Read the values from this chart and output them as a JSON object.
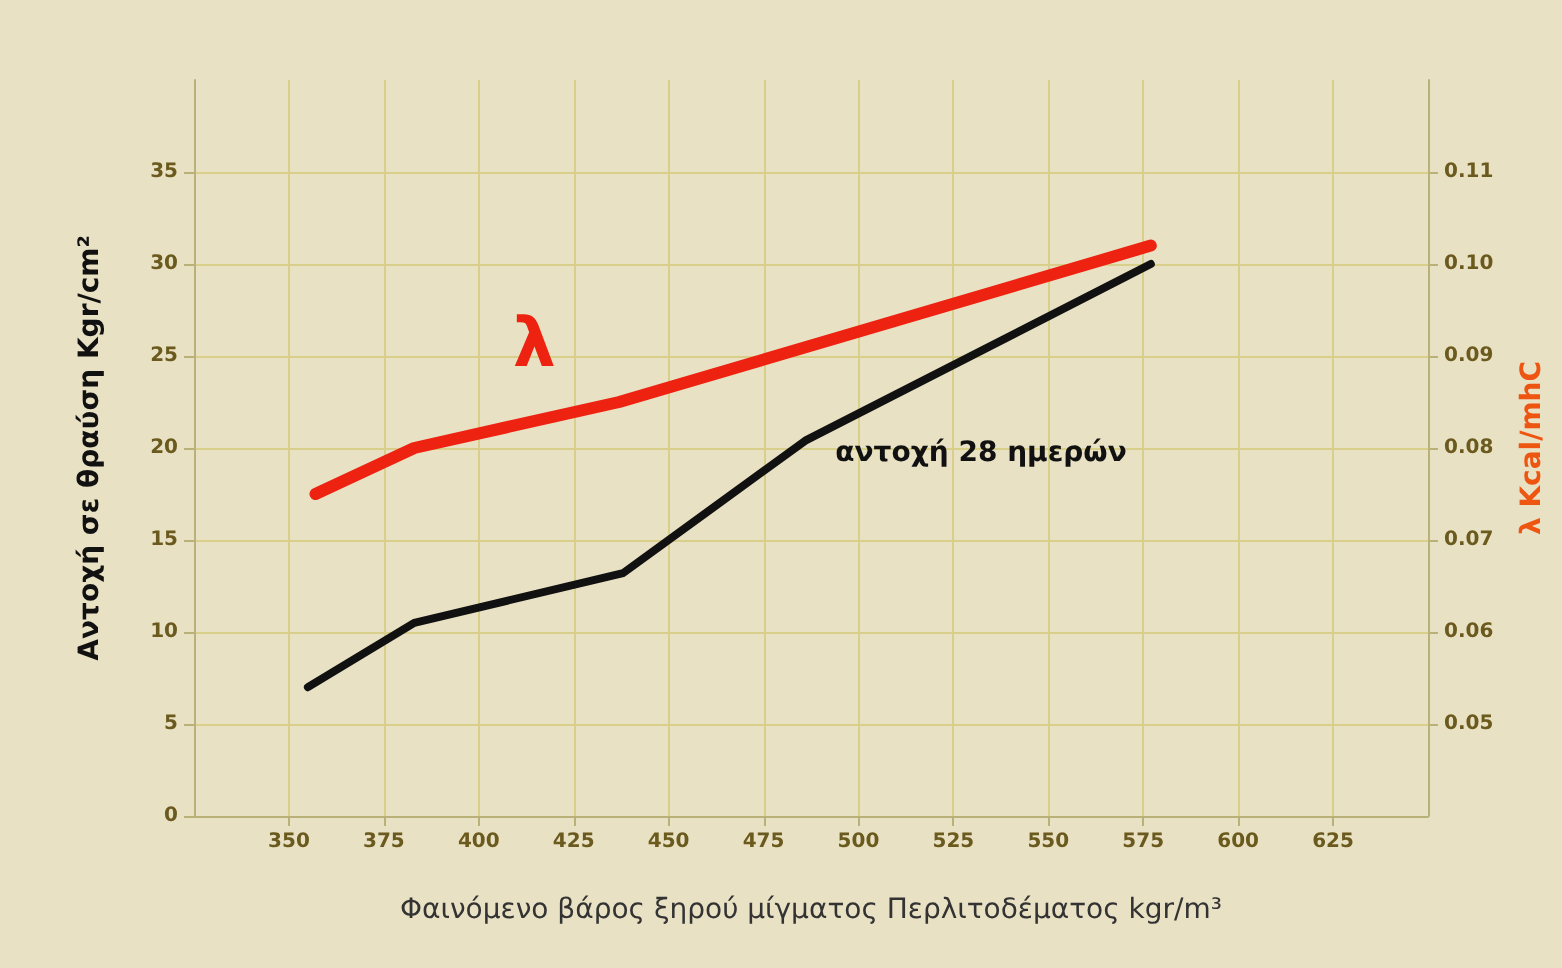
{
  "chart_data": {
    "type": "line",
    "xlabel": "Φαινόμενο βάρος ξηρού μίγματος Περλιτοδέματος kgr/m³",
    "ylabel": "Αντοχή σε θραύση Kgr/cm²",
    "y2label": "λ Kcal/mhC",
    "series": [
      {
        "name": "αντοχή 28 ημερών",
        "color": "#111111",
        "x": [
          355,
          383,
          438,
          486,
          577
        ],
        "values": [
          7,
          10.5,
          13.2,
          20.4,
          30
        ]
      },
      {
        "name": "λ",
        "color": "#ee2211",
        "axis": "y2",
        "x": [
          357,
          383,
          437,
          577
        ],
        "values": [
          0.075,
          0.08,
          0.085,
          0.102
        ]
      }
    ],
    "xlim": [
      325,
      650
    ],
    "xticks": [
      350,
      375,
      400,
      425,
      450,
      475,
      500,
      525,
      550,
      575,
      600,
      625
    ],
    "ylim": [
      0,
      40
    ],
    "yticks": [
      0,
      5,
      10,
      15,
      20,
      25,
      30,
      35
    ],
    "y2lim": [
      0.04,
      0.12
    ],
    "y2ticks": [
      0.05,
      0.06,
      0.07,
      0.08,
      0.09,
      {
        "value": 0.1,
        "label": "0.10"
      },
      0.11
    ],
    "grid": true,
    "marker": "none",
    "line_style": "solid"
  }
}
